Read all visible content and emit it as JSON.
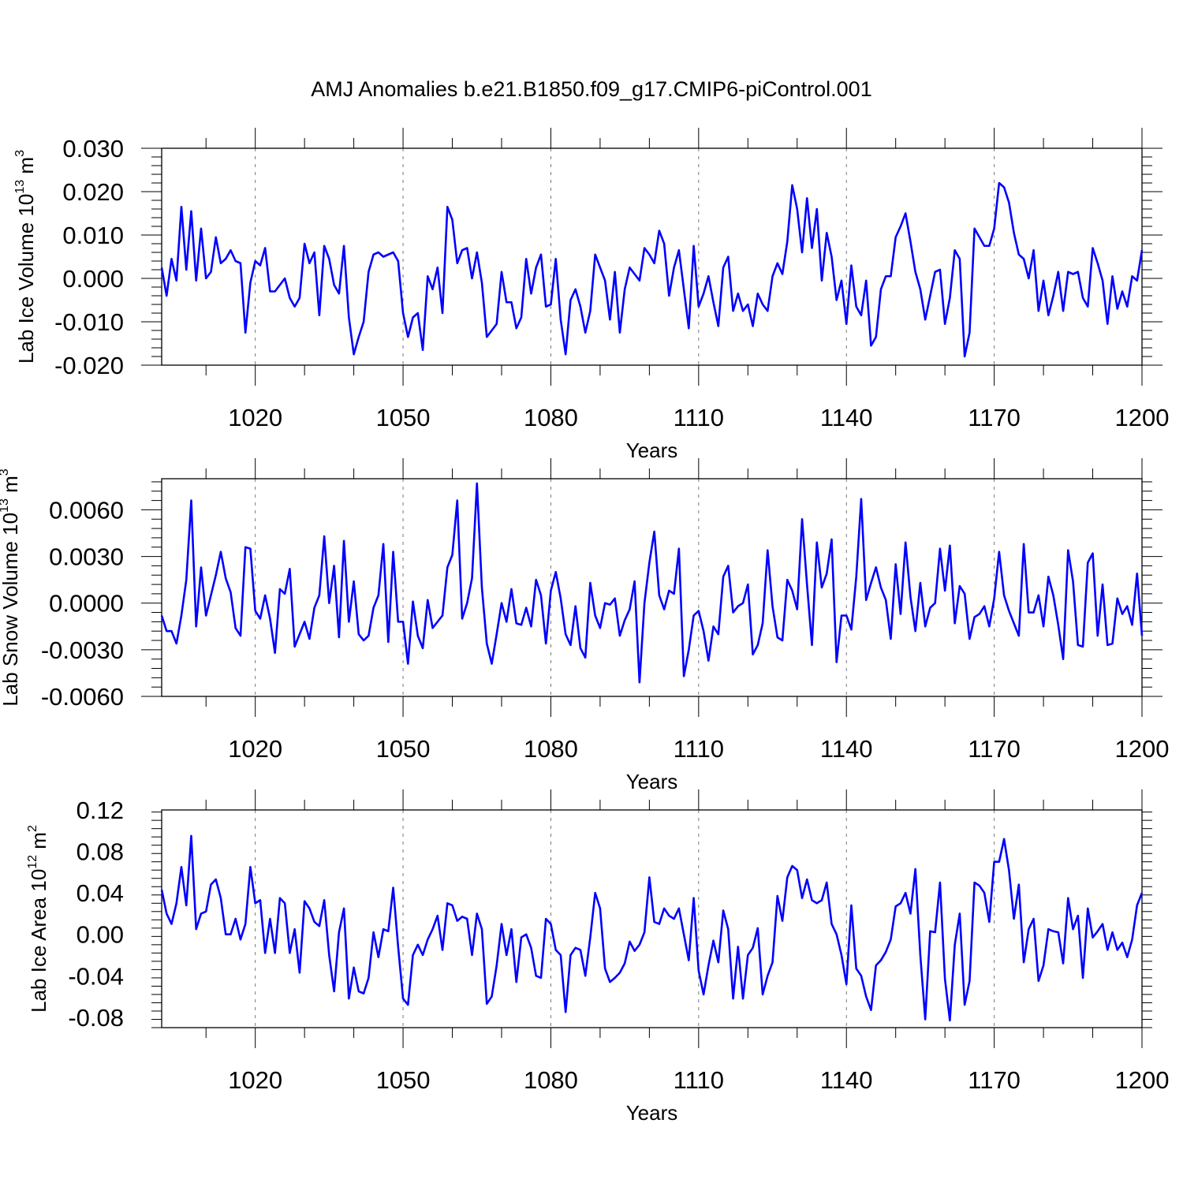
{
  "title": "AMJ Anomalies b.e21.B1850.f09_g17.CMIP6-piControl.001",
  "colors": {
    "line": "#0000ff",
    "axis": "#000000",
    "grid": "#777777"
  },
  "chart_data": [
    {
      "type": "line",
      "ylabel": {
        "text": "Lab Ice Volume 10",
        "sup": "13",
        "unit": " m",
        "unit_sup": "3"
      },
      "xlabel": "Years",
      "xlim": [
        1001,
        1200
      ],
      "ylim": [
        -0.02,
        0.03
      ],
      "xticks": [
        1020,
        1050,
        1080,
        1110,
        1140,
        1170,
        1200
      ],
      "xtick_labels": [
        "1020",
        "1050",
        "1080",
        "1110",
        "1140",
        "1170",
        "1200"
      ],
      "yticks": [
        -0.02,
        -0.01,
        0.0,
        0.01,
        0.02,
        0.03
      ],
      "ytick_labels": [
        "-0.020",
        "-0.010",
        "0.000",
        "0.010",
        "0.020",
        "0.030"
      ],
      "grid": "vertical dashed at major x ticks",
      "series": [
        {
          "name": "Lab Ice Volume",
          "x_start": 1001,
          "values": [
            0.0025,
            -0.004,
            0.0045,
            -0.0005,
            0.0165,
            0.002,
            0.0155,
            -0.0005,
            0.0115,
            0.0,
            0.0015,
            0.0095,
            0.0035,
            0.0045,
            0.0065,
            0.004,
            0.0035,
            -0.0125,
            -0.001,
            0.004,
            0.003,
            0.007,
            -0.003,
            -0.003,
            -0.0015,
            0.0,
            -0.0045,
            -0.0065,
            -0.0045,
            0.008,
            0.0035,
            0.006,
            -0.0085,
            0.0075,
            0.0045,
            -0.0015,
            -0.0035,
            0.0075,
            -0.009,
            -0.0175,
            -0.0135,
            -0.01,
            0.0015,
            0.0055,
            0.006,
            0.005,
            0.0055,
            0.006,
            0.004,
            -0.008,
            -0.0135,
            -0.009,
            -0.008,
            -0.0165,
            0.0005,
            -0.0025,
            0.0025,
            -0.008,
            0.0165,
            0.0135,
            0.0035,
            0.0065,
            0.007,
            0.0,
            0.006,
            -0.001,
            -0.0135,
            -0.012,
            -0.0105,
            0.0015,
            -0.0055,
            -0.0055,
            -0.0115,
            -0.009,
            0.0045,
            -0.0035,
            0.0025,
            0.0055,
            -0.0065,
            -0.006,
            0.0045,
            -0.0095,
            -0.0175,
            -0.005,
            -0.0025,
            -0.0065,
            -0.0125,
            -0.0075,
            0.0055,
            0.0025,
            -0.0005,
            -0.0095,
            0.0015,
            -0.0125,
            -0.0025,
            0.0025,
            0.001,
            -0.0005,
            0.007,
            0.0055,
            0.0035,
            0.011,
            0.008,
            -0.004,
            0.0025,
            0.0065,
            -0.0025,
            -0.0115,
            0.0075,
            -0.0065,
            -0.0035,
            0.0005,
            -0.0055,
            -0.011,
            0.0025,
            0.005,
            -0.0075,
            -0.0035,
            -0.0075,
            -0.006,
            -0.011,
            -0.0035,
            -0.006,
            -0.0075,
            0.0005,
            0.0035,
            0.001,
            0.0085,
            0.0215,
            0.016,
            0.006,
            0.0185,
            0.007,
            0.016,
            -0.0005,
            0.0105,
            0.005,
            -0.005,
            -0.0005,
            -0.0105,
            0.003,
            -0.0065,
            -0.0085,
            -0.0005,
            -0.0155,
            -0.0135,
            -0.0025,
            0.0005,
            0.0005,
            0.0095,
            0.012,
            0.015,
            0.0085,
            0.0015,
            -0.0025,
            -0.0095,
            -0.004,
            0.0015,
            0.002,
            -0.0105,
            -0.0045,
            0.0065,
            0.0045,
            -0.018,
            -0.0125,
            0.0115,
            0.0095,
            0.0075,
            0.0075,
            0.0115,
            0.022,
            0.021,
            0.0175,
            0.0105,
            0.0055,
            0.0045,
            0.0,
            0.0065,
            -0.0075,
            -0.0005,
            -0.0085,
            -0.004,
            0.0015,
            -0.0075,
            0.0015,
            0.001,
            0.0015,
            -0.0045,
            -0.0065,
            0.007,
            0.0035,
            -0.0005,
            -0.0105,
            0.0005,
            -0.007,
            -0.003,
            -0.0065,
            0.0005,
            -0.0005,
            0.0065
          ]
        }
      ]
    },
    {
      "type": "line",
      "ylabel": {
        "text": "Lab Snow Volume 10",
        "sup": "13",
        "unit": " m",
        "unit_sup": "3"
      },
      "xlabel": "Years",
      "xlim": [
        1001,
        1200
      ],
      "ylim": [
        -0.006,
        0.008
      ],
      "xticks": [
        1020,
        1050,
        1080,
        1110,
        1140,
        1170,
        1200
      ],
      "xtick_labels": [
        "1020",
        "1050",
        "1080",
        "1110",
        "1140",
        "1170",
        "1200"
      ],
      "yticks": [
        -0.006,
        -0.003,
        0.0,
        0.003,
        0.006
      ],
      "ytick_labels": [
        "-0.0060",
        "-0.0030",
        "0.0000",
        "0.0030",
        "0.0060"
      ],
      "grid": "vertical dashed at major x ticks",
      "series": [
        {
          "name": "Lab Snow Volume",
          "x_start": 1001,
          "values": [
            -0.0008,
            -0.0018,
            -0.0018,
            -0.0026,
            -0.0008,
            0.0015,
            0.0066,
            -0.0015,
            0.0023,
            -0.0008,
            0.0005,
            0.0018,
            0.0033,
            0.0016,
            0.0007,
            -0.0016,
            -0.0021,
            0.0036,
            0.0035,
            -0.0005,
            -0.001,
            0.0005,
            -0.001,
            -0.0032,
            0.0009,
            0.0006,
            0.0022,
            -0.0028,
            -0.002,
            -0.0012,
            -0.0023,
            -0.0003,
            0.0005,
            0.0043,
            0.0,
            0.0024,
            -0.0022,
            0.004,
            -0.0012,
            0.0014,
            -0.002,
            -0.0024,
            -0.0021,
            -0.0003,
            0.0005,
            0.0038,
            -0.0025,
            0.0033,
            -0.0012,
            -0.0012,
            -0.0039,
            0.0001,
            -0.0021,
            -0.0029,
            0.0002,
            -0.0016,
            -0.0012,
            -0.0008,
            0.0023,
            0.0031,
            0.0066,
            -0.001,
            0.0,
            0.0016,
            0.0077,
            0.001,
            -0.0026,
            -0.0039,
            -0.002,
            0.0,
            -0.0012,
            0.0009,
            -0.0013,
            -0.0014,
            -0.0003,
            -0.0015,
            0.0015,
            0.0005,
            -0.0026,
            0.0008,
            0.002,
            0.0003,
            -0.002,
            -0.0027,
            -0.0002,
            -0.0029,
            -0.0035,
            0.0013,
            -0.0008,
            -0.0016,
            0.0,
            -0.0001,
            0.0003,
            -0.0021,
            -0.0011,
            -0.0004,
            0.0014,
            -0.0051,
            0.0,
            0.0026,
            0.0046,
            0.0005,
            -0.0004,
            0.0008,
            0.0006,
            0.0035,
            -0.0047,
            -0.003,
            -0.0008,
            -0.0005,
            -0.0018,
            -0.0037,
            -0.0015,
            -0.002,
            0.0017,
            0.0024,
            -0.0006,
            -0.0002,
            0.0,
            0.0012,
            -0.0033,
            -0.0027,
            -0.0013,
            0.0034,
            -0.0002,
            -0.0022,
            -0.0024,
            0.0015,
            0.0008,
            -0.0004,
            0.0054,
            0.0012,
            -0.0027,
            0.0039,
            0.001,
            0.0019,
            0.0041,
            -0.0038,
            -0.0008,
            -0.0008,
            -0.0017,
            0.0017,
            0.0067,
            0.0002,
            0.0013,
            0.0023,
            0.001,
            0.0002,
            -0.0023,
            0.0025,
            -0.0007,
            0.0039,
            0.0004,
            -0.0018,
            0.0013,
            -0.0015,
            -0.0003,
            0.0,
            0.0035,
            0.0008,
            0.0037,
            -0.0013,
            0.0011,
            0.0006,
            -0.0023,
            -0.0009,
            -0.0007,
            -0.0002,
            -0.0015,
            0.0003,
            0.0033,
            0.0005,
            -0.0005,
            -0.0013,
            -0.0021,
            0.0038,
            -0.0006,
            -0.0006,
            0.0005,
            -0.0015,
            0.0017,
            0.0005,
            -0.0014,
            -0.0036,
            0.0034,
            0.0014,
            -0.0027,
            -0.0028,
            0.0026,
            0.0032,
            -0.0021,
            0.0012,
            -0.0027,
            -0.0026,
            0.0003,
            -0.0007,
            -0.0002,
            -0.0014,
            0.0019,
            -0.0021
          ]
        }
      ]
    },
    {
      "type": "line",
      "ylabel": {
        "text": "Lab Ice Area 10",
        "sup": "12",
        "unit": " m",
        "unit_sup": "2"
      },
      "xlabel": "Years",
      "xlim": [
        1001,
        1200
      ],
      "ylim": [
        -0.09,
        0.12
      ],
      "xticks": [
        1020,
        1050,
        1080,
        1110,
        1140,
        1170,
        1200
      ],
      "xtick_labels": [
        "1020",
        "1050",
        "1080",
        "1110",
        "1140",
        "1170",
        "1200"
      ],
      "yticks": [
        -0.08,
        -0.04,
        0.0,
        0.04,
        0.08,
        0.12
      ],
      "ytick_labels": [
        "-0.08",
        "-0.04",
        "0.00",
        "0.04",
        "0.08",
        "0.12"
      ],
      "grid": "vertical dashed at major x ticks",
      "series": [
        {
          "name": "Lab Ice Area",
          "x_start": 1001,
          "values": [
            0.043,
            0.02,
            0.01,
            0.03,
            0.065,
            0.028,
            0.095,
            0.005,
            0.02,
            0.022,
            0.048,
            0.053,
            0.035,
            0.0,
            0.0,
            0.015,
            -0.005,
            0.01,
            0.065,
            0.03,
            0.033,
            -0.018,
            0.015,
            -0.018,
            0.035,
            0.03,
            -0.018,
            0.005,
            -0.037,
            0.032,
            0.025,
            0.012,
            0.008,
            0.033,
            -0.02,
            -0.055,
            0.002,
            0.025,
            -0.062,
            -0.032,
            -0.055,
            -0.057,
            -0.042,
            0.002,
            -0.022,
            0.005,
            0.003,
            0.045,
            -0.012,
            -0.062,
            -0.068,
            -0.02,
            -0.01,
            -0.02,
            -0.005,
            0.005,
            0.018,
            -0.015,
            0.03,
            0.028,
            0.013,
            0.017,
            0.015,
            -0.02,
            0.02,
            0.005,
            -0.067,
            -0.06,
            -0.03,
            0.01,
            -0.02,
            0.005,
            -0.046,
            -0.003,
            0.0,
            -0.013,
            -0.04,
            -0.042,
            0.015,
            0.01,
            -0.015,
            -0.02,
            -0.075,
            -0.02,
            -0.013,
            -0.015,
            -0.04,
            -0.003,
            0.04,
            0.025,
            -0.033,
            -0.046,
            -0.042,
            -0.037,
            -0.028,
            -0.007,
            -0.016,
            -0.01,
            0.002,
            0.055,
            0.012,
            0.01,
            0.025,
            0.018,
            0.015,
            0.025,
            0.0,
            -0.025,
            0.035,
            -0.035,
            -0.058,
            -0.03,
            -0.006,
            -0.027,
            0.023,
            0.005,
            -0.062,
            -0.012,
            -0.062,
            -0.02,
            -0.013,
            0.006,
            -0.058,
            -0.04,
            -0.027,
            0.037,
            0.013,
            0.055,
            0.066,
            0.062,
            0.035,
            0.053,
            0.033,
            0.03,
            0.033,
            0.05,
            0.01,
            0.0,
            -0.02,
            -0.048,
            0.028,
            -0.033,
            -0.04,
            -0.06,
            -0.073,
            -0.03,
            -0.025,
            -0.017,
            -0.005,
            0.027,
            0.03,
            0.04,
            0.02,
            0.063,
            -0.02,
            -0.082,
            0.003,
            0.002,
            0.05,
            -0.043,
            -0.083,
            -0.01,
            0.02,
            -0.068,
            -0.045,
            0.05,
            0.047,
            0.04,
            0.012,
            0.07,
            0.07,
            0.092,
            0.062,
            0.015,
            0.048,
            -0.027,
            0.005,
            0.015,
            -0.045,
            -0.03,
            0.005,
            0.003,
            0.002,
            -0.028,
            0.035,
            0.005,
            0.018,
            -0.042,
            0.025,
            -0.003,
            0.003,
            0.01,
            -0.015,
            0.002,
            -0.015,
            -0.008,
            -0.022,
            -0.005,
            0.028,
            0.04
          ]
        }
      ]
    }
  ]
}
